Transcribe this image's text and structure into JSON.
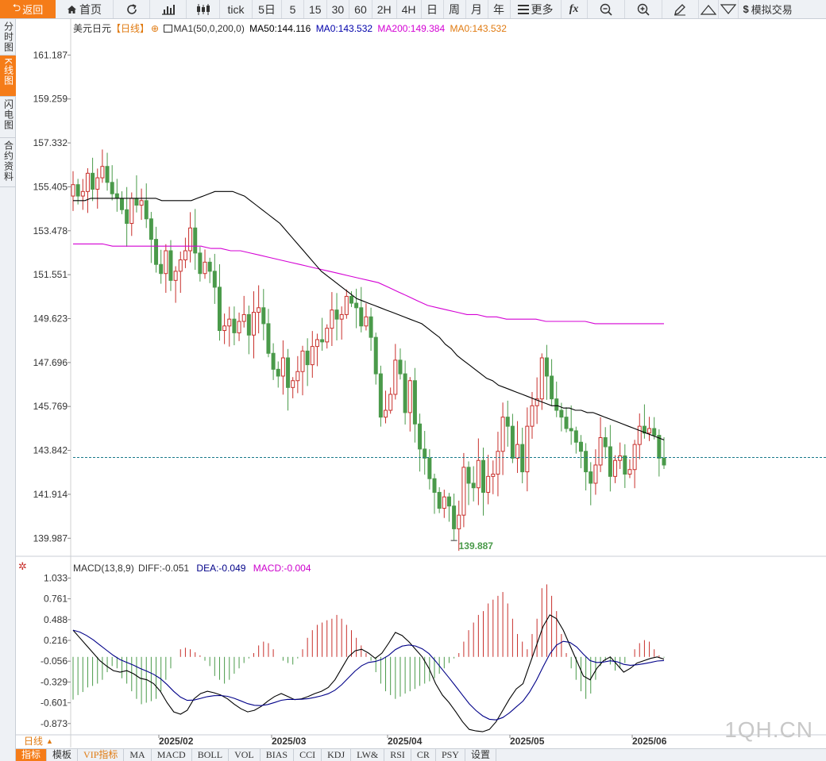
{
  "toolbar": {
    "back": "返回",
    "home": "首页",
    "tick": "tick",
    "periods": [
      "5日",
      "5",
      "15",
      "30",
      "60",
      "2H",
      "4H",
      "日",
      "周",
      "月",
      "年"
    ],
    "more": "更多",
    "trade": "模拟交易"
  },
  "sidebar": [
    {
      "label": "分时图",
      "active": false
    },
    {
      "label": "K线图",
      "active": true
    },
    {
      "label": "闪电图",
      "active": false
    },
    {
      "label": "合约资料",
      "active": false
    }
  ],
  "legend": {
    "name": "美元日元",
    "period": "【日线】",
    "ma": "MA1(50,0,200,0)",
    "ma50": "MA50:144.116",
    "ma0": "MA0:143.532",
    "ma200": "MA200:149.384",
    "ma0b": "MA0:143.532"
  },
  "macd_legend": {
    "name": "MACD(13,8,9)",
    "diff": "DIFF:-0.051",
    "dea": "DEA:-0.049",
    "macd": "MACD:-0.004"
  },
  "period_button": "日线",
  "watermark": "1QH.CN",
  "bottom_tabs": [
    "指标",
    "模板",
    "VIP指标",
    "MA",
    "MACD",
    "BOLL",
    "VOL",
    "BIAS",
    "CCI",
    "KDJ",
    "LW&",
    "RSI",
    "CR",
    "PSY",
    "设置"
  ],
  "colors": {
    "accent": "#f57c18",
    "up": "#c8302c",
    "down": "#4a9a4a",
    "ma50": "#000000",
    "ma200": "#d400d4",
    "dea": "#000088",
    "macd_label": "#cc00cc",
    "current_line": "#1a7a8a"
  },
  "chart_data": {
    "type": "candlestick",
    "price_ticks": [
      "161.187",
      "159.259",
      "157.332",
      "155.405",
      "153.478",
      "151.551",
      "149.623",
      "147.696",
      "145.769",
      "143.842",
      "141.914",
      "139.987"
    ],
    "macd_ticks": [
      "1.033",
      "0.761",
      "0.488",
      "0.216",
      "-0.056",
      "-0.329",
      "-0.601",
      "-0.873"
    ],
    "x_labels": [
      "2025/02",
      "2025/03",
      "2025/04",
      "2025/05",
      "2025/06"
    ],
    "low_label": "139.887",
    "current_price": 143.532,
    "ylim": [
      139.3,
      162.0
    ],
    "macd_ylim": [
      -1.0,
      1.1
    ],
    "closes": [
      155.5,
      155.0,
      155.2,
      156.0,
      155.3,
      155.8,
      156.3,
      155.6,
      155.1,
      154.9,
      154.4,
      153.8,
      154.9,
      154.6,
      154.8,
      154.0,
      153.1,
      152.0,
      151.6,
      152.6,
      151.3,
      151.7,
      152.2,
      152.6,
      153.6,
      152.5,
      151.6,
      152.1,
      151.7,
      151.0,
      149.1,
      149.3,
      149.6,
      149.0,
      149.5,
      149.8,
      148.9,
      149.9,
      150.1,
      149.4,
      148.1,
      147.4,
      147.1,
      147.9,
      146.6,
      146.9,
      147.3,
      148.2,
      147.6,
      148.4,
      148.7,
      148.6,
      149.2,
      150.0,
      149.6,
      149.8,
      150.6,
      150.3,
      150.1,
      149.3,
      149.7,
      148.8,
      147.2,
      145.3,
      145.6,
      146.3,
      147.8,
      147.2,
      145.5,
      146.9,
      145.0,
      143.9,
      143.5,
      142.6,
      142.0,
      141.3,
      141.8,
      141.4,
      140.4,
      141.0,
      143.1,
      142.4,
      142.2,
      143.4,
      142.0,
      142.7,
      142.8,
      143.8,
      145.3,
      144.9,
      143.5,
      144.1,
      142.9,
      144.9,
      145.8,
      146.1,
      147.9,
      147.1,
      146.1,
      145.6,
      145.3,
      144.8,
      144.7,
      144.2,
      143.8,
      142.9,
      142.4,
      143.2,
      144.4,
      144.0,
      142.7,
      143.4,
      143.6,
      142.8,
      143.0,
      144.1,
      144.9,
      144.6,
      144.8,
      144.5,
      143.5,
      143.2
    ],
    "opens": [
      155.0,
      155.5,
      155.0,
      155.2,
      156.0,
      155.3,
      155.8,
      156.3,
      155.6,
      155.1,
      154.9,
      154.4,
      153.8,
      154.9,
      154.6,
      154.8,
      154.0,
      153.1,
      152.0,
      151.6,
      152.6,
      151.3,
      151.7,
      152.2,
      152.6,
      153.6,
      152.5,
      151.6,
      152.1,
      151.7,
      151.0,
      149.1,
      149.3,
      149.6,
      149.0,
      149.5,
      149.8,
      148.9,
      149.9,
      150.1,
      149.4,
      148.1,
      147.4,
      147.1,
      147.9,
      146.6,
      146.9,
      147.3,
      148.2,
      147.6,
      148.4,
      148.7,
      148.6,
      149.2,
      150.0,
      149.6,
      149.8,
      150.6,
      150.3,
      150.1,
      149.3,
      149.7,
      148.8,
      147.2,
      145.3,
      145.6,
      146.3,
      147.8,
      147.2,
      145.5,
      146.9,
      145.0,
      143.9,
      143.5,
      142.6,
      142.0,
      141.3,
      141.8,
      141.4,
      140.4,
      141.0,
      143.1,
      142.4,
      142.2,
      143.4,
      142.0,
      142.7,
      142.8,
      143.8,
      145.3,
      144.9,
      143.5,
      144.1,
      142.9,
      144.9,
      145.8,
      146.1,
      147.9,
      147.1,
      146.1,
      145.6,
      145.3,
      144.8,
      144.7,
      144.2,
      143.8,
      142.9,
      142.4,
      143.2,
      144.4,
      144.0,
      142.7,
      143.4,
      143.6,
      142.8,
      143.0,
      144.1,
      144.9,
      144.6,
      144.8,
      144.5,
      143.5
    ],
    "ma50": [
      154.8,
      154.8,
      154.8,
      154.9,
      154.9,
      154.9,
      154.9,
      154.9,
      154.9,
      154.9,
      154.9,
      154.9,
      154.9,
      154.9,
      154.9,
      154.8,
      154.8,
      154.8,
      154.8,
      154.8,
      154.8,
      154.9,
      155.0,
      155.1,
      155.2,
      155.2,
      155.2,
      155.2,
      155.1,
      155.0,
      154.8,
      154.6,
      154.4,
      154.2,
      154.0,
      153.8,
      153.5,
      153.2,
      152.9,
      152.6,
      152.3,
      152.0,
      151.7,
      151.5,
      151.3,
      151.1,
      150.9,
      150.7,
      150.5,
      150.4,
      150.3,
      150.2,
      150.1,
      150.0,
      149.9,
      149.8,
      149.7,
      149.6,
      149.5,
      149.4,
      149.2,
      149.0,
      148.8,
      148.5,
      148.3,
      148.0,
      147.8,
      147.6,
      147.4,
      147.2,
      147.0,
      146.9,
      146.7,
      146.6,
      146.5,
      146.4,
      146.3,
      146.2,
      146.1,
      146.0,
      145.9,
      145.8,
      145.8,
      145.7,
      145.7,
      145.6,
      145.6,
      145.5,
      145.5,
      145.4,
      145.3,
      145.2,
      145.1,
      145.0,
      144.9,
      144.8,
      144.7,
      144.6,
      144.5,
      144.4,
      144.3
    ],
    "ma200": [
      152.9,
      152.9,
      152.9,
      152.9,
      152.8,
      152.8,
      152.8,
      152.8,
      152.8,
      152.8,
      152.8,
      152.8,
      152.8,
      152.8,
      152.7,
      152.7,
      152.6,
      152.6,
      152.5,
      152.4,
      152.3,
      152.2,
      152.1,
      152.0,
      151.9,
      151.8,
      151.7,
      151.6,
      151.5,
      151.4,
      151.3,
      151.2,
      151.0,
      150.8,
      150.6,
      150.4,
      150.2,
      150.1,
      150.0,
      149.9,
      149.8,
      149.8,
      149.7,
      149.7,
      149.6,
      149.6,
      149.6,
      149.6,
      149.5,
      149.5,
      149.5,
      149.5,
      149.5,
      149.4,
      149.4,
      149.4,
      149.4,
      149.4,
      149.4,
      149.4,
      149.4
    ],
    "macd_hist": [
      -0.56,
      -0.5,
      -0.46,
      -0.4,
      -0.38,
      -0.35,
      -0.3,
      -0.2,
      -0.12,
      -0.15,
      -0.28,
      -0.35,
      -0.45,
      -0.55,
      -0.62,
      -0.6,
      -0.58,
      -0.55,
      -0.45,
      -0.3,
      -0.15,
      0.0,
      0.1,
      0.12,
      0.1,
      0.06,
      0.02,
      -0.05,
      -0.12,
      -0.25,
      -0.3,
      -0.35,
      -0.3,
      -0.22,
      -0.15,
      -0.08,
      -0.02,
      0.05,
      0.15,
      0.2,
      0.18,
      0.1,
      0.0,
      -0.05,
      -0.08,
      -0.1,
      -0.02,
      0.1,
      0.25,
      0.35,
      0.42,
      0.45,
      0.48,
      0.5,
      0.55,
      0.5,
      0.42,
      0.35,
      0.25,
      0.15,
      0.05,
      -0.05,
      -0.2,
      -0.35,
      -0.45,
      -0.5,
      -0.55,
      -0.52,
      -0.48,
      -0.45,
      -0.42,
      -0.38,
      -0.35,
      -0.32,
      -0.28,
      -0.22,
      -0.15,
      -0.08,
      -0.02,
      0.05,
      0.2,
      0.35,
      0.45,
      0.55,
      0.6,
      0.7,
      0.75,
      0.8,
      0.85,
      0.7,
      0.5,
      0.3,
      0.2,
      0.1,
      0.3,
      0.5,
      0.9,
      0.95,
      0.8,
      0.6,
      0.3,
      0.05,
      -0.15,
      -0.3,
      -0.45,
      -0.55,
      -0.48,
      -0.3,
      -0.12,
      -0.05,
      -0.1,
      -0.18,
      -0.15,
      -0.08,
      0.0,
      0.1,
      0.18,
      0.22,
      0.2,
      0.1,
      0.02,
      -0.01
    ],
    "dif": [
      0.35,
      0.25,
      0.15,
      0.05,
      -0.05,
      -0.12,
      -0.18,
      -0.2,
      -0.18,
      -0.22,
      -0.28,
      -0.3,
      -0.35,
      -0.45,
      -0.6,
      -0.72,
      -0.75,
      -0.7,
      -0.55,
      -0.48,
      -0.45,
      -0.47,
      -0.5,
      -0.55,
      -0.62,
      -0.68,
      -0.72,
      -0.7,
      -0.65,
      -0.58,
      -0.52,
      -0.48,
      -0.52,
      -0.56,
      -0.55,
      -0.52,
      -0.48,
      -0.45,
      -0.4,
      -0.3,
      -0.15,
      0.0,
      0.08,
      0.1,
      0.05,
      -0.02,
      0.05,
      0.18,
      0.32,
      0.28,
      0.2,
      0.1,
      0.0,
      -0.15,
      -0.35,
      -0.5,
      -0.6,
      -0.72,
      -0.85,
      -0.95,
      -0.97,
      -0.98,
      -0.95,
      -0.85,
      -0.7,
      -0.55,
      -0.42,
      -0.35,
      -0.1,
      0.15,
      0.4,
      0.55,
      0.5,
      0.35,
      0.15,
      -0.05,
      -0.25,
      -0.3,
      -0.15,
      -0.05,
      0.0,
      -0.1,
      -0.2,
      -0.15,
      -0.08,
      -0.05,
      -0.02,
      0.0,
      -0.03
    ]
  }
}
